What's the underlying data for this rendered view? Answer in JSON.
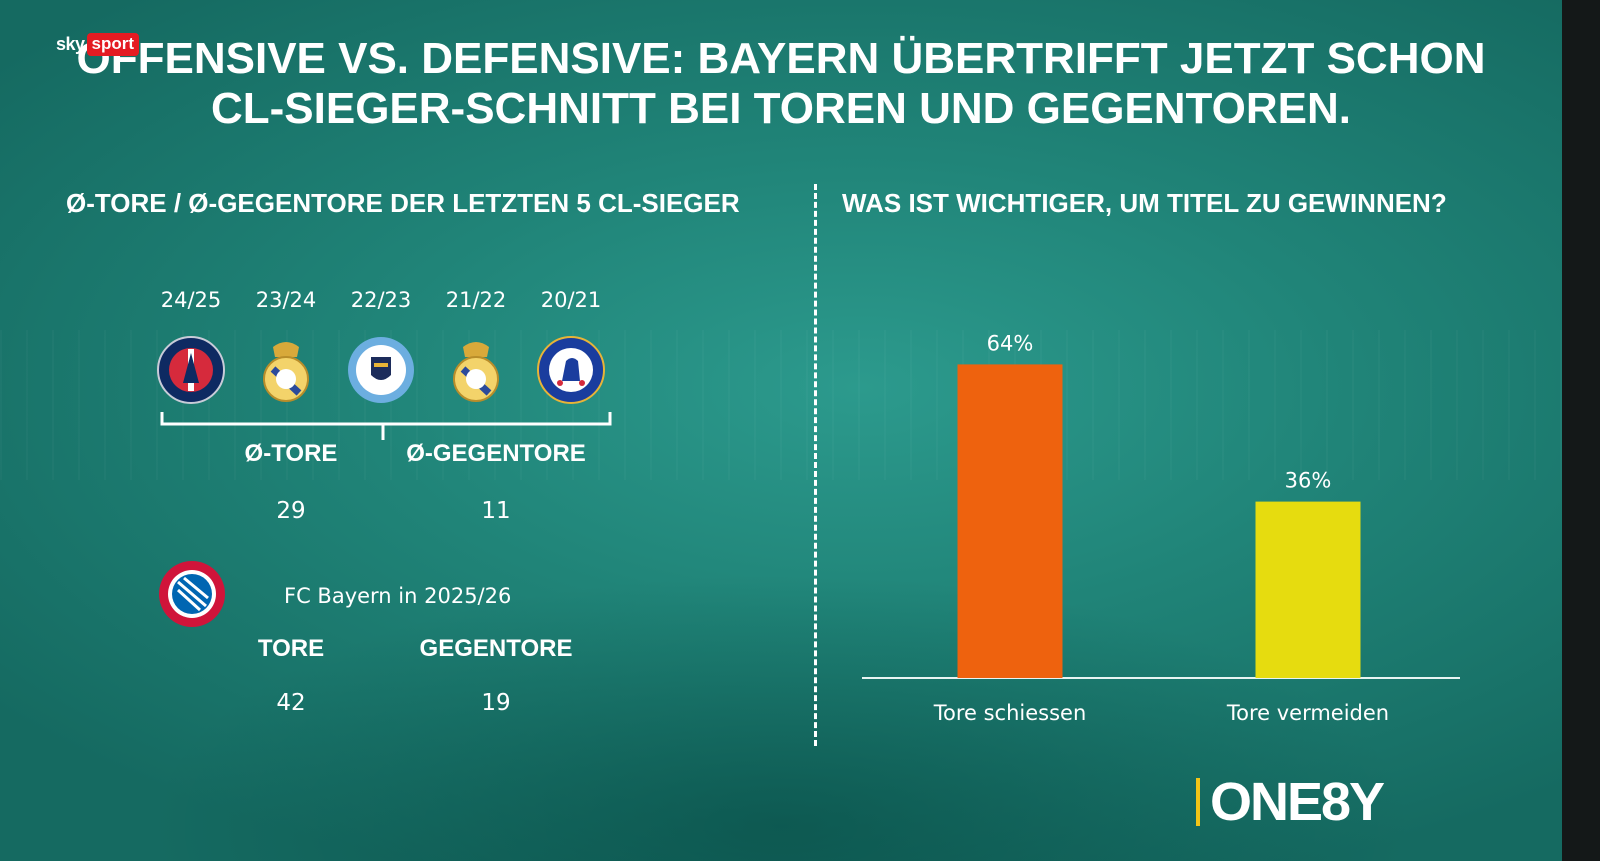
{
  "logo": {
    "sky": "sky",
    "sport": "sport"
  },
  "title": {
    "line1": "OFFENSIVE VS. DEFENSIVE: BAYERN ÜBERTRIFFT JETZT SCHON",
    "line2": "CL-SIEGER-SCHNITT BEI TOREN UND GEGENTOREN."
  },
  "left": {
    "heading": "Ø-TORE / Ø-GEGENTORE DER LETZTEN 5 CL-SIEGER",
    "winners": [
      {
        "season": "24/25",
        "club_icon": "psg-crest-icon",
        "color": "#0e2a62",
        "accent": "#d62a3c"
      },
      {
        "season": "23/24",
        "club_icon": "real-madrid-crest-icon",
        "color": "#f3d36a",
        "accent": "#2c4a9a"
      },
      {
        "season": "22/23",
        "club_icon": "manchester-city-crest-icon",
        "color": "#6caee0",
        "accent": "#1c2c5b"
      },
      {
        "season": "21/22",
        "club_icon": "real-madrid-crest-icon",
        "color": "#f3d36a",
        "accent": "#2c4a9a"
      },
      {
        "season": "20/21",
        "club_icon": "chelsea-crest-icon",
        "color": "#1a3d9e",
        "accent": "#e8b437"
      }
    ],
    "avg_labels": {
      "goals": "Ø-TORE",
      "conceded": "Ø-GEGENTORE"
    },
    "avg_values": {
      "goals": "29",
      "conceded": "11"
    },
    "bayern": {
      "label": "FC Bayern in 2025/26",
      "icon": "fc-bayern-crest-icon",
      "goals_label": "TORE",
      "conceded_label": "GEGENTORE",
      "goals": "42",
      "conceded": "19",
      "color": "#d0143a"
    }
  },
  "right": {
    "heading": "WAS IST WICHTIGER, UM TITEL ZU GEWINNEN?"
  },
  "chart_data": {
    "type": "bar",
    "title": "WAS IST WICHTIGER, UM TITEL ZU GEWINNEN?",
    "categories": [
      "Tore schiessen",
      "Tore vermeiden"
    ],
    "values": [
      64,
      36
    ],
    "value_labels": [
      "64%",
      "36%"
    ],
    "colors": [
      "#ee620e",
      "#e6dc0f"
    ],
    "ylim": [
      0,
      100
    ],
    "grid": false
  },
  "brand": {
    "name": "ONE8Y",
    "accent": "#f2c417"
  }
}
